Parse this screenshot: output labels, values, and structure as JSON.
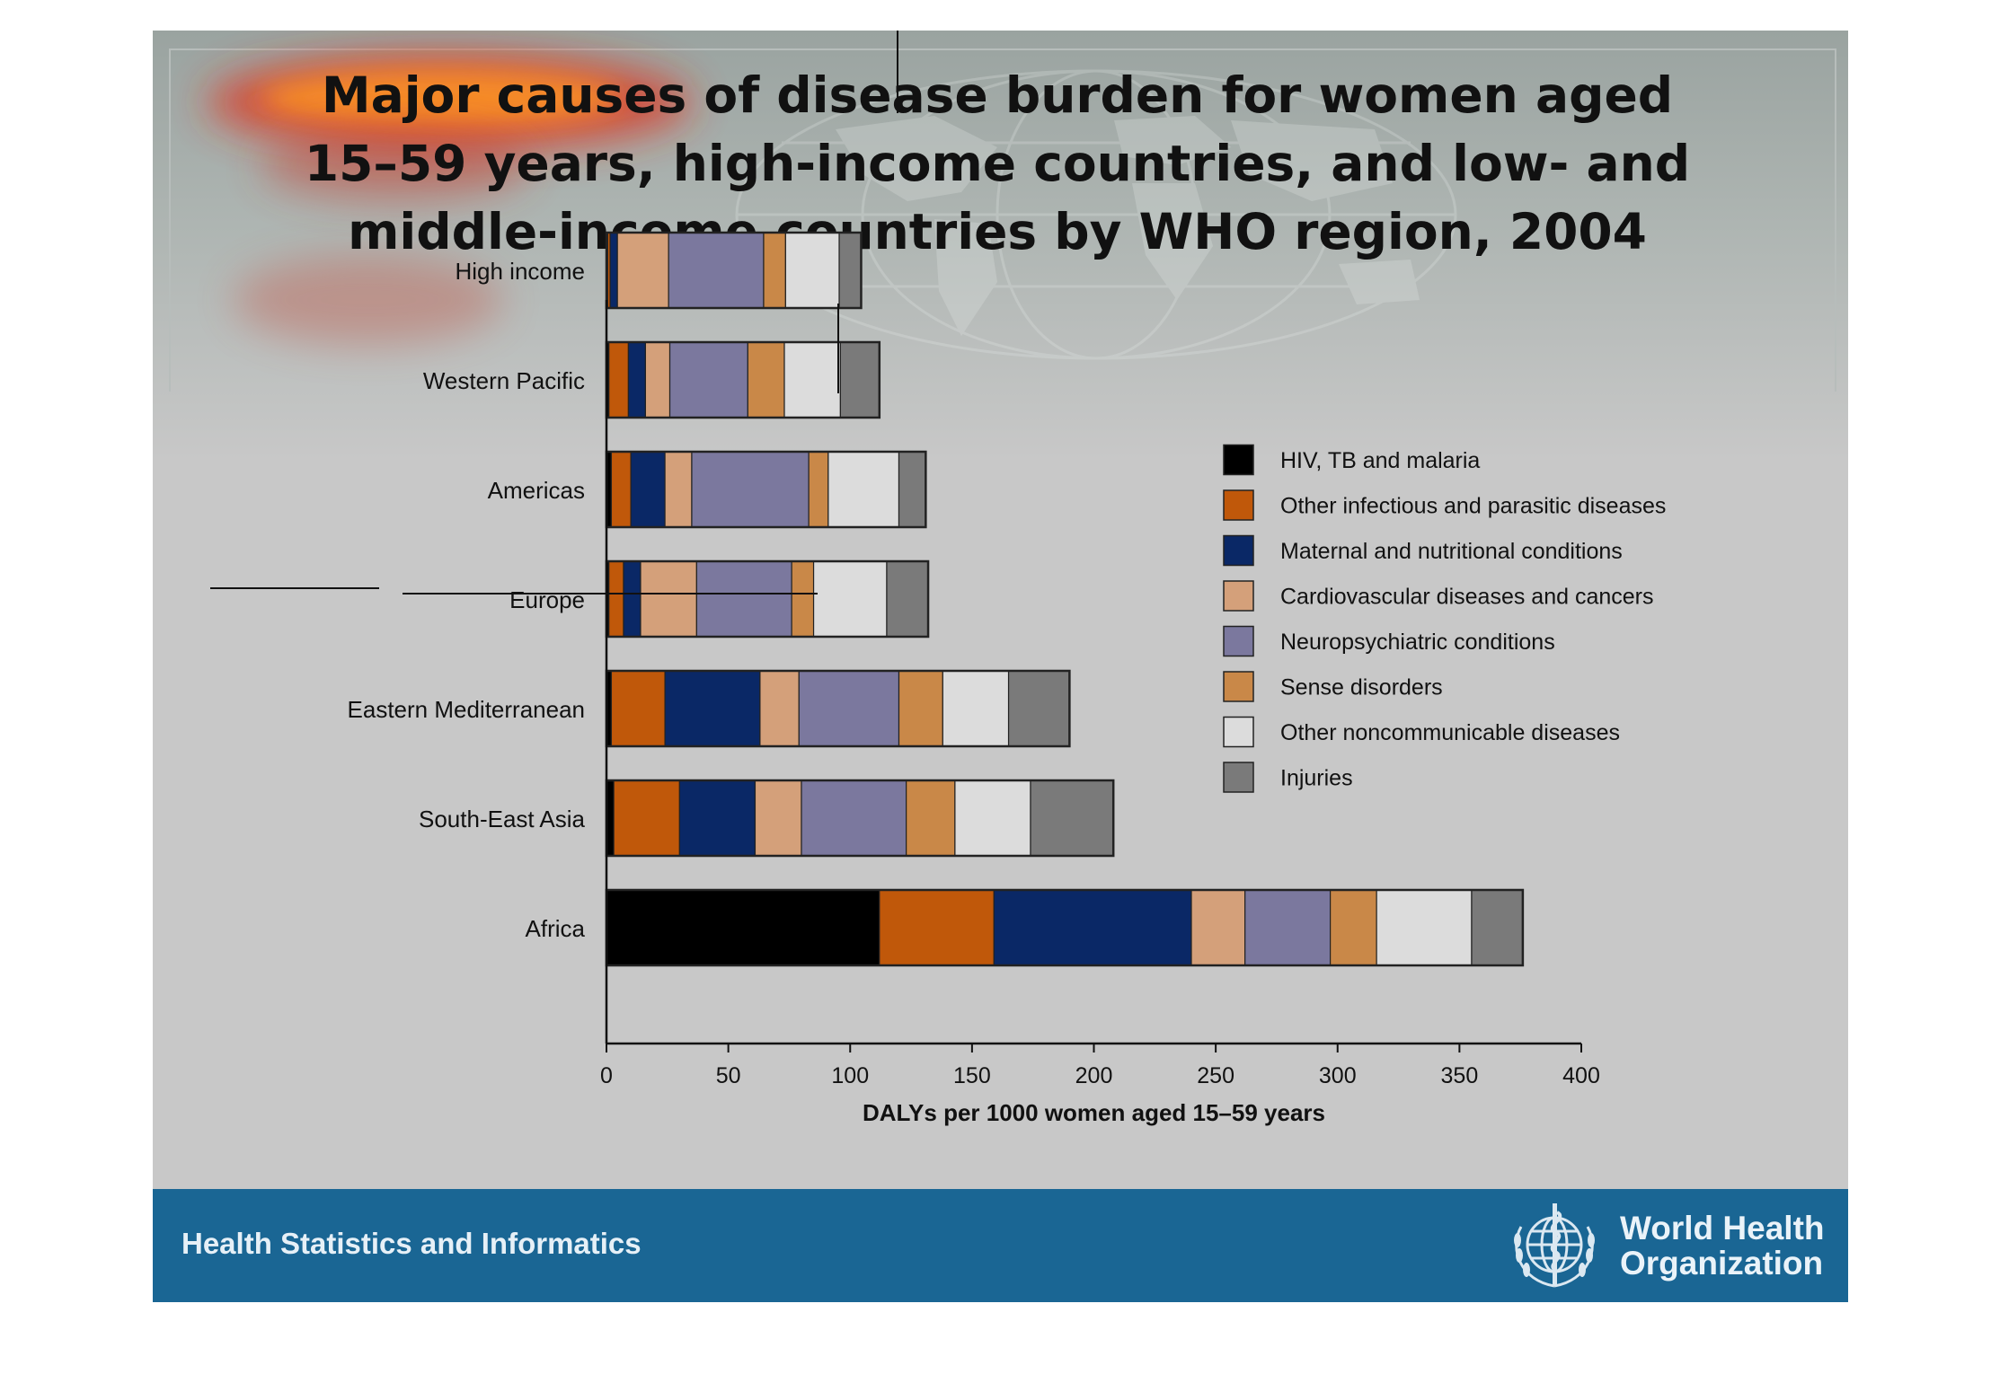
{
  "slide": {
    "title": "Major causes of disease burden for women aged\n15–59 years, high-income countries, and low- and\nmiddle-income countries by WHO region, 2004",
    "footer_left": "Health Statistics and Informatics",
    "footer_right": "World Health\nOrganization",
    "footer_color": "#1a6694",
    "background_color": "#c8c8c8",
    "logo_icon": "who-emblem-icon"
  },
  "chart_data": {
    "type": "bar",
    "orientation": "horizontal",
    "stacked": true,
    "title": "",
    "xlabel": "DALYs per 1000 women aged 15–59 years",
    "ylabel": "",
    "xlim": [
      0,
      400
    ],
    "xticks": [
      0,
      50,
      100,
      150,
      200,
      250,
      300,
      350,
      400
    ],
    "grid": false,
    "legend_position": "right",
    "categories": [
      "High income",
      "Western Pacific",
      "Americas",
      "Europe",
      "Eastern Mediterranean",
      "South-East Asia",
      "Africa"
    ],
    "series": [
      {
        "name": "HIV, TB and malaria",
        "color": "#000000",
        "values": [
          0.5,
          1,
          2,
          1,
          2,
          3,
          112
        ]
      },
      {
        "name": "Other infectious and parasitic diseases",
        "color": "#c0580a",
        "values": [
          1,
          8,
          8,
          6,
          22,
          27,
          47
        ]
      },
      {
        "name": "Maternal and nutritional conditions",
        "color": "#0a2866",
        "values": [
          3,
          7,
          14,
          7,
          39,
          31,
          81
        ]
      },
      {
        "name": "Cardiovascular diseases and cancers",
        "color": "#d4a07a",
        "values": [
          21,
          10,
          11,
          23,
          16,
          19,
          22
        ]
      },
      {
        "name": "Neuropsychiatric conditions",
        "color": "#7b789e",
        "values": [
          39,
          32,
          48,
          39,
          41,
          43,
          35
        ]
      },
      {
        "name": "Sense disorders",
        "color": "#c98848",
        "values": [
          9,
          15,
          8,
          9,
          18,
          20,
          19
        ]
      },
      {
        "name": "Other noncommunicable diseases",
        "color": "#dcdcdc",
        "values": [
          22,
          23,
          29,
          30,
          27,
          31,
          39
        ]
      },
      {
        "name": "Injuries",
        "color": "#7a7a7a",
        "values": [
          9,
          16,
          11,
          17,
          25,
          34,
          21
        ]
      }
    ]
  }
}
